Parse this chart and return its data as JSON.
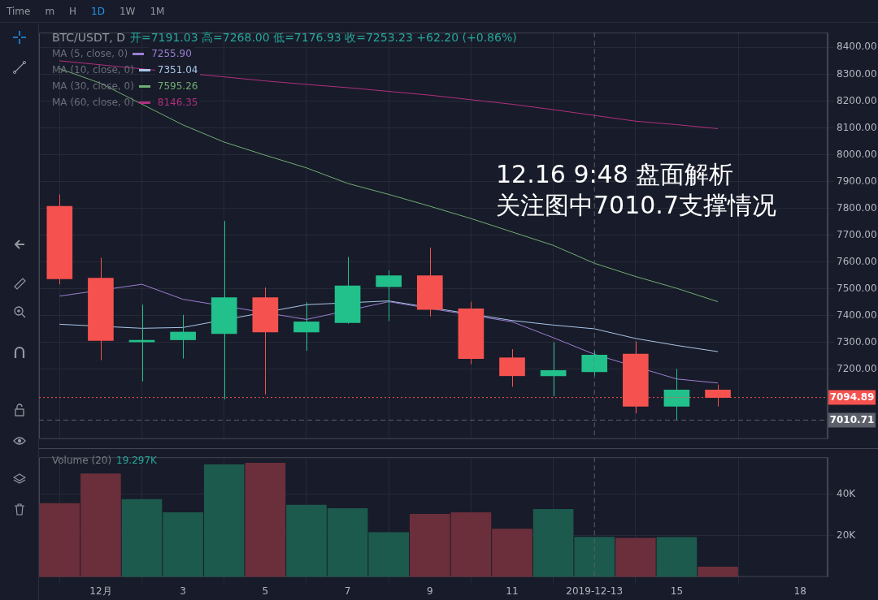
{
  "chart_data": [
    {
      "type": "candlestick",
      "title": "BTC/USDT, D",
      "subtitle": "开=7191.03 高=7268.00 低=7176.93 收=7253.23 +62.20 (+0.86%)",
      "x": [
        "2019-11-30",
        "2019-12-01",
        "2019-12-02",
        "2019-12-03",
        "2019-12-04",
        "2019-12-05",
        "2019-12-06",
        "2019-12-07",
        "2019-12-08",
        "2019-12-09",
        "2019-12-10",
        "2019-12-11",
        "2019-12-12",
        "2019-12-13",
        "2019-12-14",
        "2019-12-15",
        "2019-12-16"
      ],
      "ohlc": [
        [
          7808,
          7852,
          7517,
          7537
        ],
        [
          7540,
          7616,
          7234,
          7307
        ],
        [
          7302,
          7441,
          7155,
          7308
        ],
        [
          7310,
          7403,
          7240,
          7339
        ],
        [
          7333,
          7753,
          7088,
          7467
        ],
        [
          7467,
          7505,
          7106,
          7339
        ],
        [
          7339,
          7450,
          7269,
          7377
        ],
        [
          7374,
          7619,
          7370,
          7511
        ],
        [
          7508,
          7569,
          7380,
          7549
        ],
        [
          7549,
          7654,
          7397,
          7423
        ],
        [
          7426,
          7452,
          7219,
          7240
        ],
        [
          7243,
          7275,
          7135,
          7176
        ],
        [
          7176,
          7301,
          7100,
          7196
        ],
        [
          7191.03,
          7268.0,
          7176.93,
          7253.23
        ],
        [
          7257,
          7304,
          7036,
          7062
        ],
        [
          7062,
          7202,
          7010.71,
          7123
        ],
        [
          7123,
          7143,
          7062,
          7094.89
        ]
      ],
      "colors": [
        "#f5524f",
        "#f5524f",
        "#22c08b",
        "#22c08b",
        "#22c08b",
        "#f5524f",
        "#22c08b",
        "#22c08b",
        "#22c08b",
        "#f5524f",
        "#f5524f",
        "#f5524f",
        "#22c08b",
        "#22c08b",
        "#f5524f",
        "#22c08b",
        "#f5524f"
      ],
      "series": [
        {
          "type": "line",
          "name": "MA (5, close, 0)",
          "color": "#9b7fd4",
          "values": [
            7473,
            null,
            7517,
            7461,
            null,
            null,
            7386,
            null,
            7452,
            null,
            null,
            7377,
            7318,
            7255.9,
            null,
            7164,
            7149
          ]
        },
        {
          "type": "line",
          "name": "MA (10, close, 0)",
          "color": "#a9c6e8",
          "values": [
            7368,
            null,
            7353,
            7356,
            null,
            null,
            7441,
            null,
            7455,
            null,
            null,
            7382,
            7365,
            7351.04,
            7315,
            7289,
            7266
          ]
        },
        {
          "type": "line",
          "name": "MA (30, close, 0)",
          "color": "#6fae74",
          "values": [
            8321,
            8266,
            null,
            8111,
            8047,
            7998,
            7951,
            7893,
            7852,
            7808,
            7762,
            7712,
            7662,
            7595.26,
            7546,
            7502,
            7452
          ]
        },
        {
          "type": "line",
          "name": "MA (60, close, 0)",
          "color": "#b0307f",
          "values": [
            8350,
            8335,
            null,
            null,
            8290,
            8275,
            8262,
            8250,
            8236,
            8222,
            8205,
            8188,
            8168,
            8146.35,
            8125,
            8112,
            8097
          ]
        }
      ],
      "xlim": [
        "2019-11-29T12:00",
        "2019-12-18T16:00"
      ],
      "xticks": [
        {
          "value": "2019-12-01",
          "label": null
        },
        {
          "value": "2019-12-03",
          "label": null
        },
        {
          "value": "2019-12-05",
          "label": null
        },
        {
          "value": "2019-12-07",
          "label": null
        },
        {
          "value": "2019-12-09",
          "label": null
        },
        {
          "value": "2019-12-11",
          "label": null
        },
        {
          "value": "2019-12-13",
          "label": null
        },
        {
          "value": "2019-12-15",
          "label": null
        },
        {
          "value": "2019-12-18",
          "label": null
        }
      ],
      "ylim": [
        6940,
        8455
      ],
      "yticks": [
        {
          "value": 7200,
          "label": "7200.00"
        },
        {
          "value": 7300,
          "label": "7300.00"
        },
        {
          "value": 7400,
          "label": "7400.00"
        },
        {
          "value": 7500,
          "label": "7500.00"
        },
        {
          "value": 7600,
          "label": "7600.00"
        },
        {
          "value": 7700,
          "label": "7700.00"
        },
        {
          "value": 7800,
          "label": "7800.00"
        },
        {
          "value": 7900,
          "label": "7900.00"
        },
        {
          "value": 8000,
          "label": "8000.00"
        },
        {
          "value": 8100,
          "label": "8100.00"
        },
        {
          "value": 8200,
          "label": "8200.00"
        },
        {
          "value": 8300,
          "label": "8300.00"
        },
        {
          "value": 8400,
          "label": "8400.00"
        }
      ],
      "tick_labels": "y",
      "grid": true,
      "legend": "top left",
      "ref_lines": [
        {
          "axis": "y",
          "value": 7094.89,
          "label": "7094.89",
          "color": "#f5524f",
          "line_style": "dotted"
        },
        {
          "axis": "y",
          "value": 7010.71,
          "label": "7010.71",
          "color": "#5d606b",
          "line_style": "dashed"
        },
        {
          "axis": "x",
          "value": "2019-12-13",
          "label": null,
          "color": "#5d606b",
          "line_style": "dashed"
        }
      ],
      "annotations": [
        "7255.90",
        "7351.04",
        "7595.26",
        "8146.35",
        "12.16 9:48 盘面解析",
        "关注图中7010.7支撑情况",
        "Time",
        "m",
        "H",
        "1D",
        "1W",
        "1M"
      ]
    },
    {
      "type": "bar",
      "title": "Volume (20)",
      "x": [
        "2019-11-30",
        "2019-12-01",
        "2019-12-02",
        "2019-12-03",
        "2019-12-04",
        "2019-12-05",
        "2019-12-06",
        "2019-12-07",
        "2019-12-08",
        "2019-12-09",
        "2019-12-10",
        "2019-12-11",
        "2019-12-12",
        "2019-12-13",
        "2019-12-14",
        "2019-12-15",
        "2019-12-16"
      ],
      "values": [
        35.6,
        50,
        37.6,
        31.2,
        54.4,
        55.2,
        34.8,
        33.2,
        21.6,
        30.4,
        31.2,
        23.2,
        32.8,
        19.297,
        18.8,
        19.2,
        4.8
      ],
      "colors": [
        "#6b2f3b",
        "#6b2f3b",
        "#1c5a4e",
        "#1c5a4e",
        "#1c5a4e",
        "#6b2f3b",
        "#1c5a4e",
        "#1c5a4e",
        "#1c5a4e",
        "#6b2f3b",
        "#6b2f3b",
        "#6b2f3b",
        "#1c5a4e",
        "#1c5a4e",
        "#6b2f3b",
        "#1c5a4e",
        "#6b2f3b"
      ],
      "xlim": [
        "2019-11-29T12:00",
        "2019-12-18T16:00"
      ],
      "xticks": [
        {
          "value": "2019-12-01",
          "label": "12月"
        },
        {
          "value": "2019-12-03",
          "label": "3"
        },
        {
          "value": "2019-12-05",
          "label": "5"
        },
        {
          "value": "2019-12-07",
          "label": "7"
        },
        {
          "value": "2019-12-09",
          "label": "9"
        },
        {
          "value": "2019-12-11",
          "label": "11"
        },
        {
          "value": "2019-12-13",
          "label": "2019-12-13"
        },
        {
          "value": "2019-12-15",
          "label": "15"
        },
        {
          "value": "2019-12-18",
          "label": "18"
        }
      ],
      "ylim": [
        0,
        58
      ],
      "yticks": [
        {
          "value": 20,
          "label": "20K"
        },
        {
          "value": 40,
          "label": "40K"
        }
      ],
      "grid": true,
      "ref_lines": [
        {
          "axis": "x",
          "value": "2019-12-13",
          "label": null,
          "color": "#5d606b",
          "line_style": "dashed"
        }
      ],
      "annotations": [
        "19.297K"
      ]
    }
  ]
}
